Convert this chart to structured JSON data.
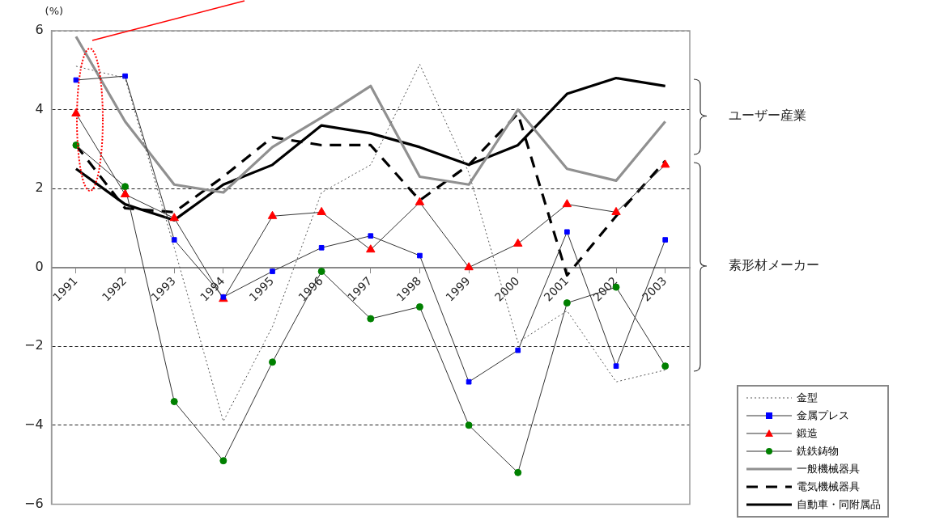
{
  "chart_data": {
    "type": "line",
    "ylabel": "(%)",
    "categories": [
      "1991",
      "1992",
      "1993",
      "1994",
      "1995",
      "1996",
      "1997",
      "1998",
      "1999",
      "2000",
      "2001",
      "2002",
      "2003"
    ],
    "series": [
      {
        "name": "金型",
        "color": "#555555",
        "line_style": "dotted",
        "marker": "none",
        "values": [
          5.1,
          4.8,
          0.5,
          -3.9,
          -1.5,
          1.9,
          2.6,
          5.15,
          2.4,
          -1.9,
          -1.1,
          -2.9,
          -2.6
        ]
      },
      {
        "name": "金属プレス",
        "color": "#0000ff",
        "line_style": "solid",
        "marker": "square",
        "values": [
          4.75,
          4.85,
          0.7,
          -0.75,
          -0.1,
          0.5,
          0.8,
          0.3,
          -2.9,
          -2.1,
          0.9,
          -2.5,
          0.7
        ]
      },
      {
        "name": "鍛造",
        "color": "#ff0000",
        "line_style": "solid",
        "marker": "triangle",
        "values": [
          3.9,
          1.85,
          1.25,
          -0.8,
          1.3,
          1.4,
          0.45,
          1.65,
          0.0,
          0.6,
          1.6,
          1.4,
          2.6
        ]
      },
      {
        "name": "銑鉄鋳物",
        "color": "#008000",
        "line_style": "solid",
        "marker": "circle",
        "values": [
          3.1,
          2.05,
          -3.4,
          -4.9,
          -2.4,
          -0.1,
          -1.3,
          -1.0,
          -4.0,
          -5.2,
          -0.9,
          -0.5,
          -2.5
        ]
      },
      {
        "name": "一般機械器具",
        "color": "#909090",
        "line_style": "solid",
        "marker": "none",
        "values": [
          5.85,
          3.7,
          2.1,
          1.9,
          3.05,
          3.8,
          4.6,
          2.3,
          2.1,
          4.0,
          2.5,
          2.2,
          3.7
        ]
      },
      {
        "name": "電気機械器具",
        "color": "#000000",
        "line_style": "dashed",
        "marker": "none",
        "values": [
          3.1,
          1.5,
          1.4,
          2.3,
          3.3,
          3.1,
          3.1,
          1.7,
          2.6,
          3.9,
          -0.2,
          1.3,
          2.7
        ]
      },
      {
        "name": "自動車・同附属品",
        "color": "#000000",
        "line_style": "solid",
        "marker": "none",
        "values": [
          2.5,
          1.6,
          1.2,
          2.1,
          2.6,
          3.6,
          3.4,
          3.05,
          2.6,
          3.1,
          4.4,
          4.8,
          4.6
        ]
      }
    ],
    "ylim": [
      -6,
      6
    ],
    "yticks": [
      -6,
      -4,
      -2,
      0,
      2,
      4,
      6
    ],
    "grid": "y",
    "legend": "bottom right",
    "annotations": [
      "ユーザー産業",
      "素形材メーカー"
    ]
  }
}
